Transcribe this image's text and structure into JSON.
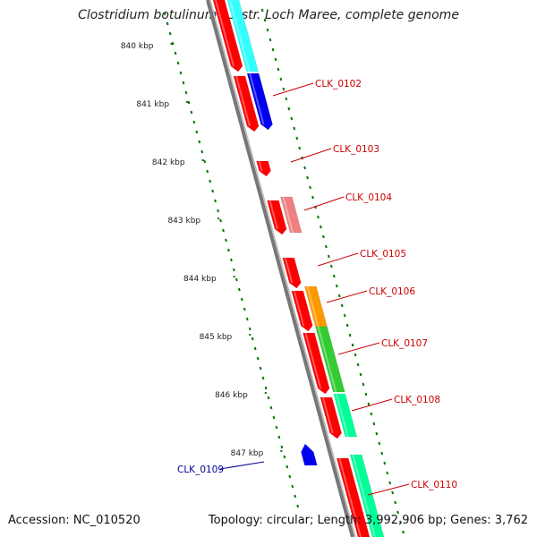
{
  "title": "Clostridium botulinum A3 str. Loch Maree, complete genome",
  "footer": {
    "accession": "Accession: NC_010520",
    "topology": "Topology: circular; Length: 3,992,906 bp; Genes: 3,762"
  },
  "scale": {
    "ticks": [
      "840 kbp",
      "841 kbp",
      "842 kbp",
      "843 kbp",
      "844 kbp",
      "845 kbp",
      "846 kbp",
      "847 kbp"
    ]
  },
  "genes": [
    {
      "label": "CLK_0102",
      "color": "#cc0000"
    },
    {
      "label": "CLK_0103",
      "color": "#cc0000"
    },
    {
      "label": "CLK_0104",
      "color": "#cc0000"
    },
    {
      "label": "CLK_0105",
      "color": "#cc0000"
    },
    {
      "label": "CLK_0106",
      "color": "#cc0000"
    },
    {
      "label": "CLK_0107",
      "color": "#cc0000"
    },
    {
      "label": "CLK_0108",
      "color": "#cc0000"
    },
    {
      "label": "CLK_0109",
      "color": "#000099"
    },
    {
      "label": "CLK_0110",
      "color": "#cc0000"
    }
  ],
  "colors": {
    "cds": "#ff0000",
    "backbone": "#888888",
    "tick": "#007700",
    "cyan": "#33ffff",
    "blue": "#0000ee",
    "pink": "#f08080",
    "orange": "#ff9900",
    "green": "#33cc33",
    "aqua": "#00ff99"
  }
}
